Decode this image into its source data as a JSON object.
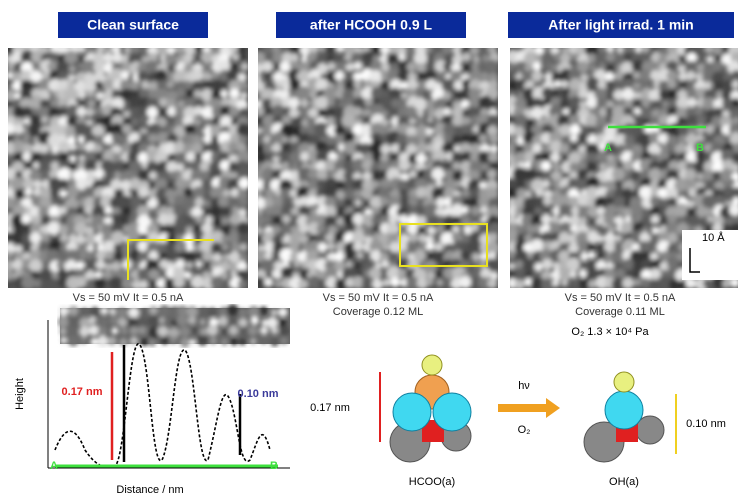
{
  "panels": [
    {
      "title": "Clean surface",
      "caption": "Vs = 50 mV  It = 0.5 nA"
    },
    {
      "title": "after HCOOH 0.9 L",
      "caption": "Vs = 50 mV  It = 0.5 nA",
      "caption2": "Coverage  0.12 ML"
    },
    {
      "title": "After light irrad. 1 min",
      "caption": "Vs = 50 mV  It = 0.5 nA",
      "caption2": "Coverage  0.11 ML",
      "note": "O₂  1.3 × 10⁴ Pa",
      "label_a": "A",
      "label_b": "B",
      "scale": "10 Å"
    }
  ],
  "profile": {
    "y_label": "Height",
    "x_label": "Distance / nm",
    "point_a": "A",
    "point_b": "B",
    "step_red": "0.17 nm",
    "step_black": "0.10 nm"
  },
  "scheme": {
    "left_height": "0.17 nm",
    "right_height": "0.10 nm",
    "arrow_top": "hν",
    "arrow_bottom": "O₂",
    "left_label": "HCOO(a)",
    "right_label": "OH(a)"
  }
}
